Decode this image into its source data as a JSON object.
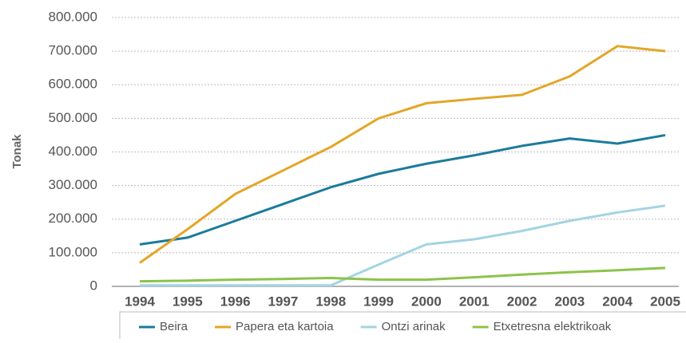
{
  "chart_data": {
    "type": "line",
    "y_label": "Tonak",
    "categories": [
      "1994",
      "1995",
      "1996",
      "1997",
      "1998",
      "1999",
      "2000",
      "2001",
      "2002",
      "2003",
      "2004",
      "2005"
    ],
    "series": [
      {
        "name": "Beira",
        "color": "#1b7b9b",
        "values": [
          125000,
          145000,
          195000,
          245000,
          295000,
          335000,
          365000,
          390000,
          418000,
          440000,
          425000,
          450000
        ]
      },
      {
        "name": "Papera eta kartoia",
        "color": "#e3a627",
        "values": [
          70000,
          170000,
          275000,
          345000,
          415000,
          500000,
          545000,
          558000,
          570000,
          625000,
          715000,
          700000
        ]
      },
      {
        "name": "Ontzi arinak",
        "color": "#a3d4e2",
        "values": [
          3000,
          3000,
          3000,
          3000,
          3000,
          65000,
          125000,
          140000,
          165000,
          195000,
          220000,
          240000
        ]
      },
      {
        "name": "Etxetresna elektrikoak",
        "color": "#8cc34b",
        "values": [
          15000,
          17000,
          20000,
          22000,
          25000,
          20000,
          20000,
          27000,
          35000,
          42000,
          48000,
          55000
        ]
      }
    ],
    "ylim": [
      0,
      800000
    ],
    "yticks": [
      0,
      {
        "value": 100000,
        "label": "100.000"
      },
      {
        "value": 200000,
        "label": "200.000"
      },
      {
        "value": 300000,
        "label": "300.000"
      },
      {
        "value": 400000,
        "label": "400.000"
      },
      {
        "value": 500000,
        "label": "500.000"
      },
      {
        "value": 600000,
        "label": "600.000"
      },
      {
        "value": 700000,
        "label": "700.000"
      },
      {
        "value": 800000,
        "label": "800.000"
      }
    ],
    "grid": true,
    "legend": "bottom"
  }
}
